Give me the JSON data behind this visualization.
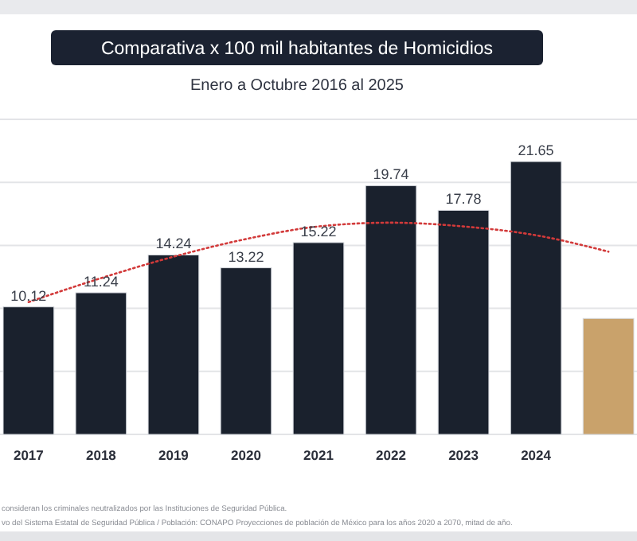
{
  "chart_data": {
    "type": "bar",
    "title": "Comparativa x 100 mil habitantes de Homicidios",
    "subtitle": "Enero a Octubre 2016 al 2025",
    "categories": [
      "2017",
      "2018",
      "2019",
      "2020",
      "2021",
      "2022",
      "2023",
      "2024",
      null
    ],
    "series": [
      {
        "colors": [
          "#1a212d",
          "#1a212d",
          "#1a212d",
          "#1a212d",
          "#1a212d",
          "#1a212d",
          "#1a212d",
          "#1a212d",
          "#c9a26b"
        ],
        "values": [
          10.12,
          11.24,
          14.24,
          13.22,
          15.22,
          19.74,
          17.78,
          21.65,
          9.2
        ],
        "value_labels": [
          "10.12",
          "11.24",
          "14.24",
          "13.22",
          "15.22",
          "19.74",
          "17.78",
          "21.65",
          null
        ]
      },
      {
        "type": "line",
        "color": "#d23a3a",
        "line_style": "dotted",
        "values": [
          10.5,
          12.4,
          14.1,
          15.5,
          16.5,
          16.8,
          16.5,
          15.8,
          14.5
        ]
      }
    ],
    "ylim": [
      0,
      25
    ],
    "yticks": [
      {
        "value": 0,
        "label": null
      },
      {
        "value": 5,
        "label": null
      },
      {
        "value": 10,
        "label": null
      },
      {
        "value": 15,
        "label": null
      },
      {
        "value": 20,
        "label": null
      },
      {
        "value": 25,
        "label": null
      }
    ],
    "grid": "y",
    "tick_labels": "x",
    "annotations": [
      "consideran los criminales neutralizados por las Instituciones de Seguridad Pública.",
      "vo del Sistema Estatal de Seguridad Pública / Población: CONAPO Proyecciones de población de México para los años 2020 a 2070, mitad de año."
    ]
  }
}
